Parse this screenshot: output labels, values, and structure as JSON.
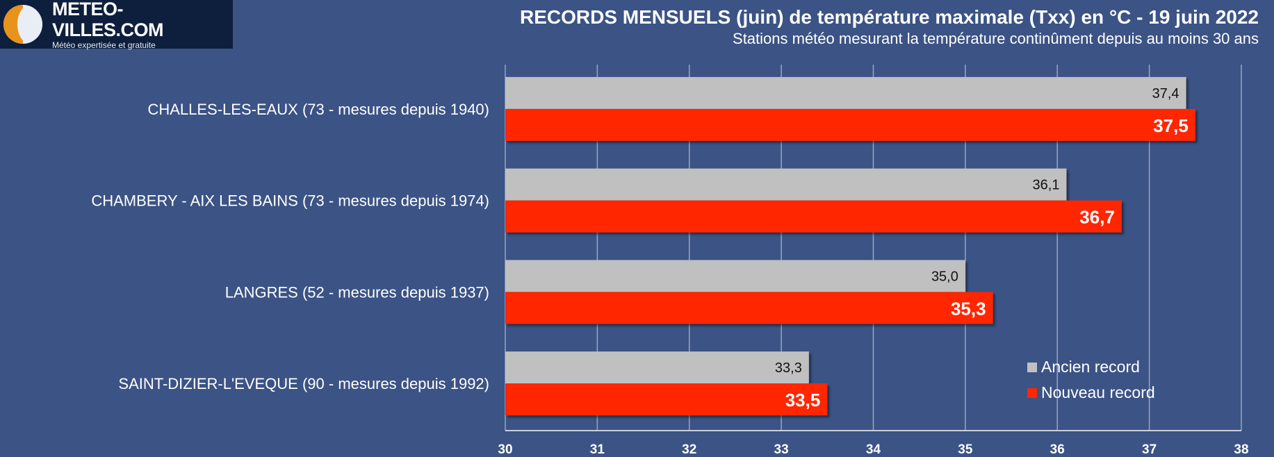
{
  "logo": {
    "name": "METEO-VILLES.COM",
    "tagline": "Météo expertisée et gratuite"
  },
  "colors": {
    "background": "#3b5385",
    "old_record": "#c0c0c0",
    "new_record": "#ff2600",
    "grid": "#9aa6bd"
  },
  "chart_data": {
    "type": "bar",
    "orientation": "horizontal",
    "title": "RECORDS MENSUELS (juin) de température maximale (Txx) en °C - 19 juin 2022",
    "subtitle": "Stations météo mesurant la température continûment depuis au moins 30 ans",
    "categories": [
      "CHALLES-LES-EAUX (73 - mesures depuis 1940)",
      "CHAMBERY - AIX LES BAINS (73 - mesures depuis 1974)",
      "LANGRES (52 - mesures depuis 1937)",
      "SAINT-DIZIER-L'EVEQUE (90 - mesures depuis 1992)"
    ],
    "series": [
      {
        "name": "Ancien record",
        "values": [
          37.4,
          36.1,
          35.0,
          33.3
        ],
        "labels": [
          "37,4",
          "36,1",
          "35,0",
          "33,3"
        ]
      },
      {
        "name": "Nouveau record",
        "values": [
          37.5,
          36.7,
          35.3,
          33.5
        ],
        "labels": [
          "37,5",
          "36,7",
          "35,3",
          "33,5"
        ]
      }
    ],
    "xlim": [
      30,
      38
    ],
    "ticks": [
      "30",
      "31",
      "32",
      "33",
      "34",
      "35",
      "36",
      "37",
      "38"
    ],
    "grid": true,
    "legend_position": "bottom-right"
  }
}
